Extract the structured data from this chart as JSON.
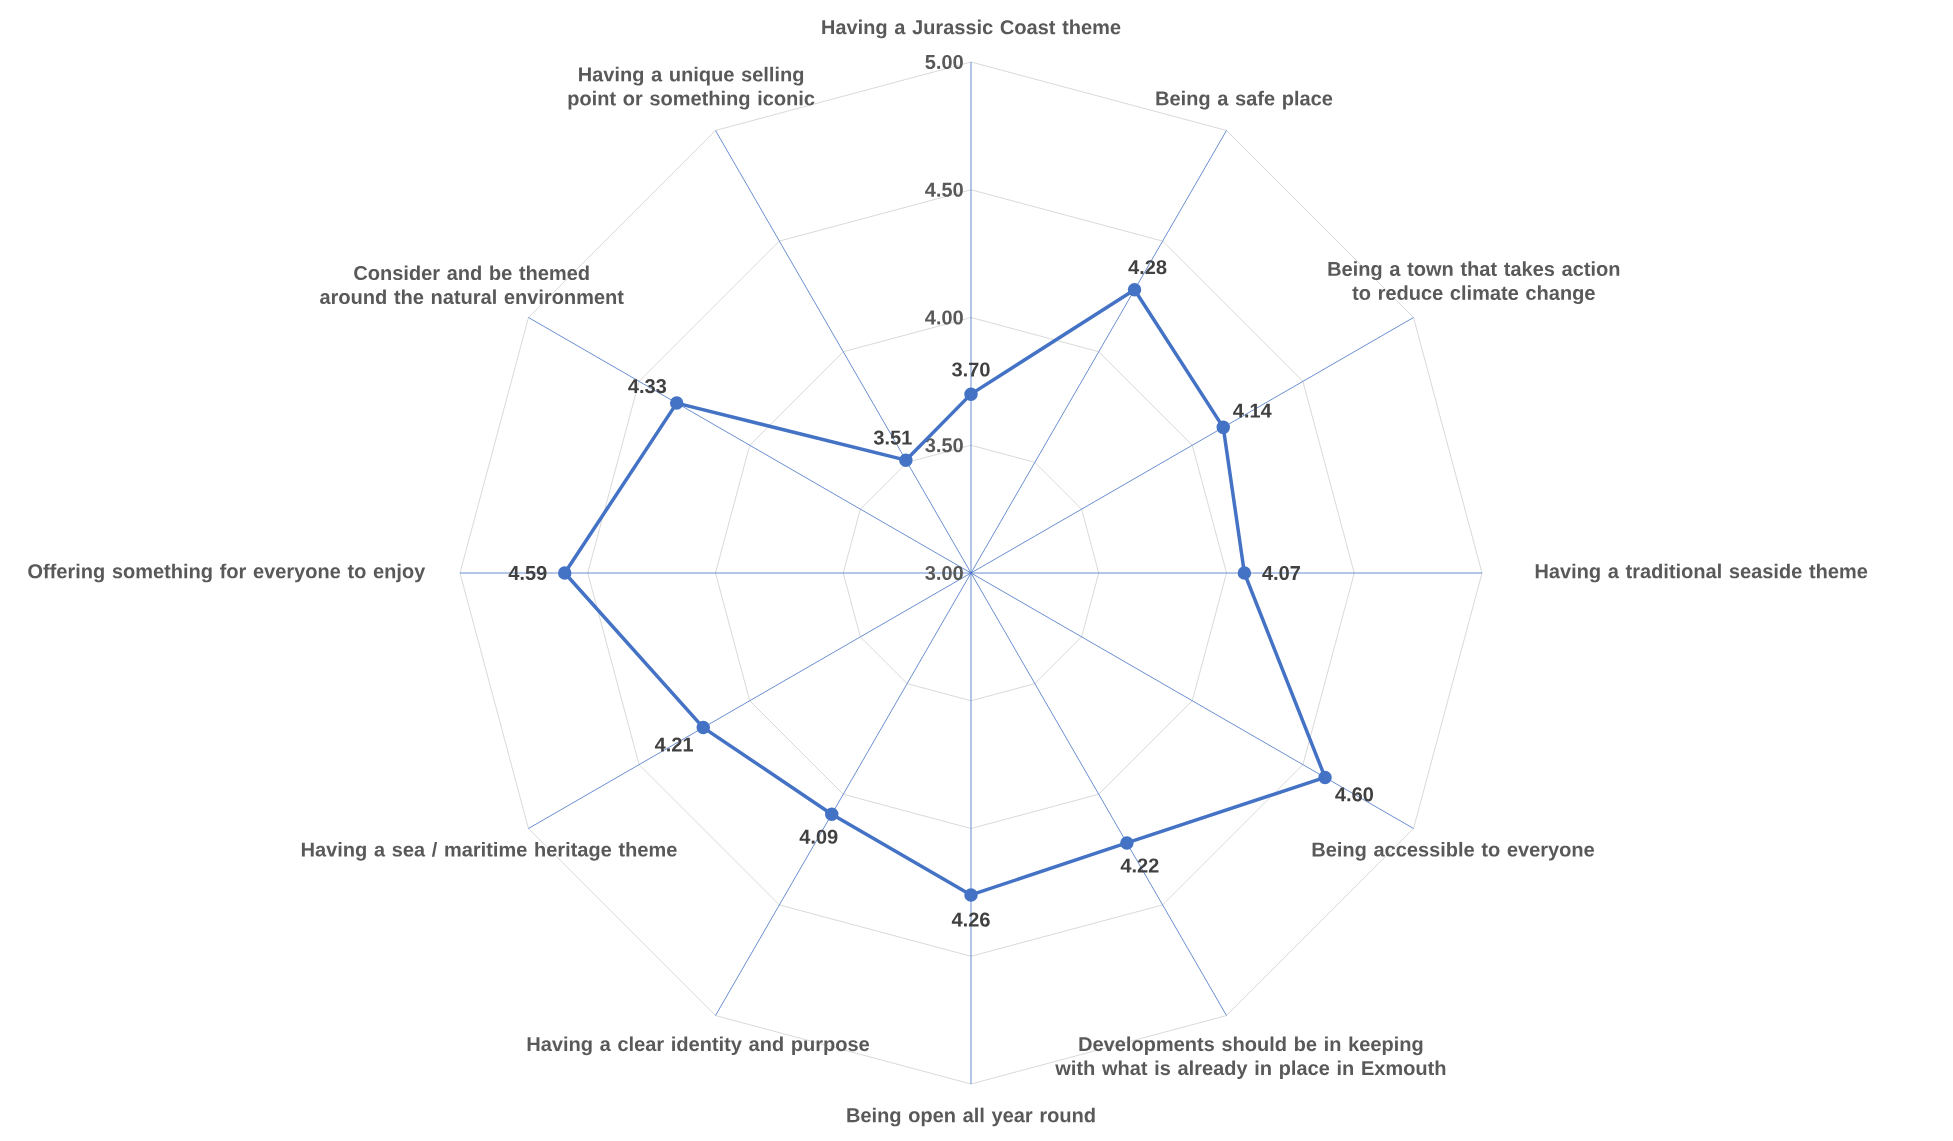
{
  "chart_data": {
    "type": "radar",
    "categories": [
      "Having a Jurassic Coast theme",
      "Being a safe place",
      "Being a town that takes action to reduce climate change",
      "Having a traditional seaside theme",
      "Being accessible to everyone",
      "Developments should be in keeping with what is already in place in Exmouth",
      "Being open all year round",
      "Having a clear identity and purpose",
      "Having a sea / maritime heritage theme",
      "Offering something for everyone to enjoy",
      "Consider and be themed around the natural environment",
      "Having a unique selling point or something iconic"
    ],
    "series": [
      {
        "color": "#4472c4",
        "values": [
          3.7,
          4.28,
          4.14,
          4.07,
          4.6,
          4.22,
          4.26,
          4.09,
          4.21,
          4.59,
          4.33,
          3.51
        ],
        "value_labels": [
          "3.70",
          "4.28",
          "4.14",
          "4.07",
          "4.60",
          "4.22",
          "4.26",
          "4.09",
          "4.21",
          "4.59",
          "4.33",
          "3.51"
        ]
      }
    ],
    "ylim": [
      3,
      5
    ],
    "yticks": [
      {
        "value": 3,
        "label": "3.00"
      },
      {
        "value": 3.5,
        "label": "3.50"
      },
      {
        "value": 4,
        "label": "4.00"
      },
      {
        "value": 4.5,
        "label": "4.50"
      },
      {
        "value": 5,
        "label": "5.00"
      }
    ],
    "grid": true,
    "marker": "circle"
  }
}
